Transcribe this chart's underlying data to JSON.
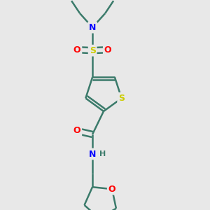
{
  "bg_color": "#e8e8e8",
  "bond_color": "#3a7a6a",
  "bond_width": 1.8,
  "atom_colors": {
    "S_sulfonyl": "#cccc00",
    "S_thio": "#cccc00",
    "N": "#0000ff",
    "O": "#ff0000",
    "C": "#3a7a6a",
    "H": "#3a7a6a"
  },
  "font_size": 9,
  "fig_size": [
    3.0,
    3.0
  ],
  "dpi": 100
}
